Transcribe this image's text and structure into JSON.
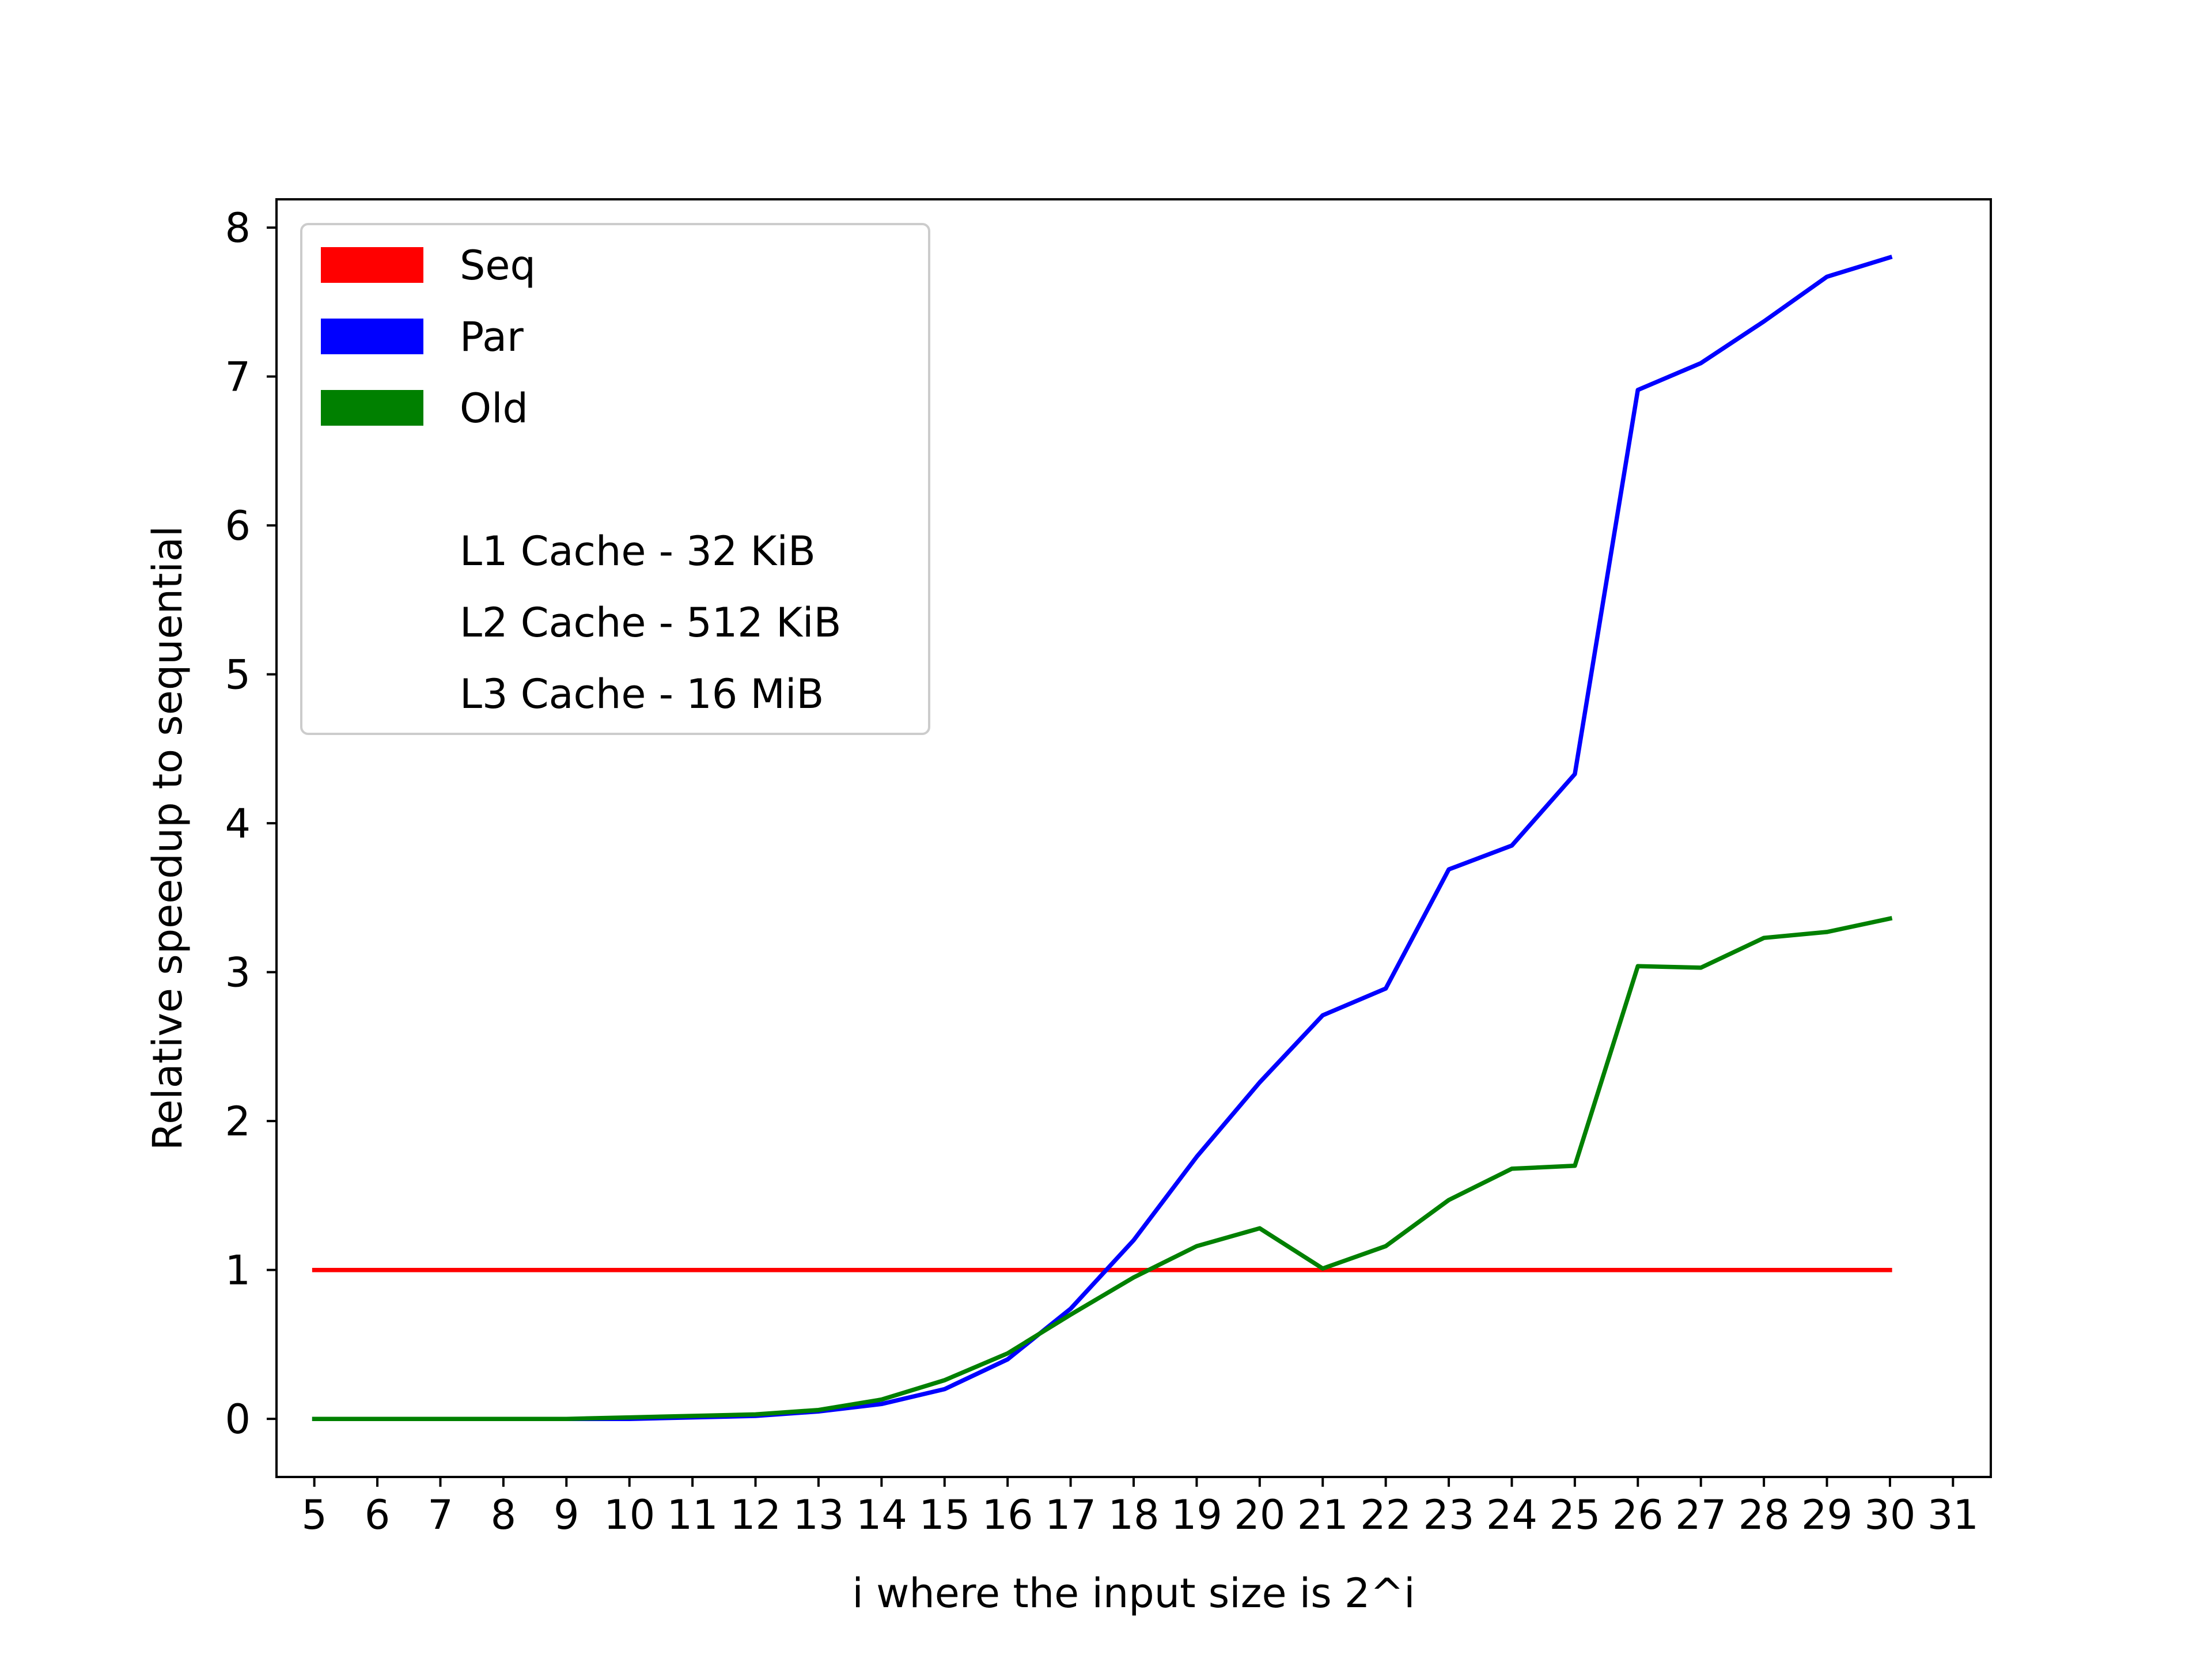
{
  "chart_data": {
    "type": "line",
    "title": "",
    "xlabel": "i where the input size is 2^i",
    "ylabel": "Relative speedup to sequential",
    "x": [
      5,
      6,
      7,
      8,
      9,
      10,
      11,
      12,
      13,
      14,
      15,
      16,
      17,
      18,
      19,
      20,
      21,
      22,
      23,
      24,
      25,
      26,
      27,
      28,
      29,
      30
    ],
    "xticks": [
      "5",
      "6",
      "7",
      "8",
      "9",
      "10",
      "11",
      "12",
      "13",
      "14",
      "15",
      "16",
      "17",
      "18",
      "19",
      "20",
      "21",
      "22",
      "23",
      "24",
      "25",
      "26",
      "27",
      "28",
      "29",
      "30",
      "31"
    ],
    "yticks": [
      "0",
      "1",
      "2",
      "3",
      "4",
      "5",
      "6",
      "7",
      "8"
    ],
    "xlim": [
      4.4,
      31.6
    ],
    "ylim": [
      -0.39,
      8.19
    ],
    "grid": false,
    "legend_position": "top-left",
    "series": [
      {
        "name": "Seq",
        "color": "#ff0000",
        "values": [
          1,
          1,
          1,
          1,
          1,
          1,
          1,
          1,
          1,
          1,
          1,
          1,
          1,
          1,
          1,
          1,
          1,
          1,
          1,
          1,
          1,
          1,
          1,
          1,
          1,
          1
        ]
      },
      {
        "name": "Par",
        "color": "#0000ff",
        "values": [
          0.0,
          0.0,
          0.0,
          0.0,
          0.0,
          0.0,
          0.01,
          0.02,
          0.05,
          0.1,
          0.2,
          0.4,
          0.74,
          1.2,
          1.76,
          2.26,
          2.71,
          2.89,
          3.69,
          3.85,
          4.33,
          6.91,
          7.09,
          7.37,
          7.67,
          7.8
        ]
      },
      {
        "name": "Old",
        "color": "#008000",
        "values": [
          0.0,
          0.0,
          0.0,
          0.0,
          0.0,
          0.01,
          0.02,
          0.03,
          0.06,
          0.13,
          0.26,
          0.44,
          0.7,
          0.95,
          1.16,
          1.28,
          1.01,
          1.16,
          1.47,
          1.68,
          1.7,
          3.04,
          3.03,
          3.23,
          3.27,
          3.36
        ]
      }
    ],
    "legend_notes": [
      "L1 Cache - 32 KiB",
      "L2 Cache - 512 KiB",
      "L3 Cache - 16 MiB"
    ]
  }
}
